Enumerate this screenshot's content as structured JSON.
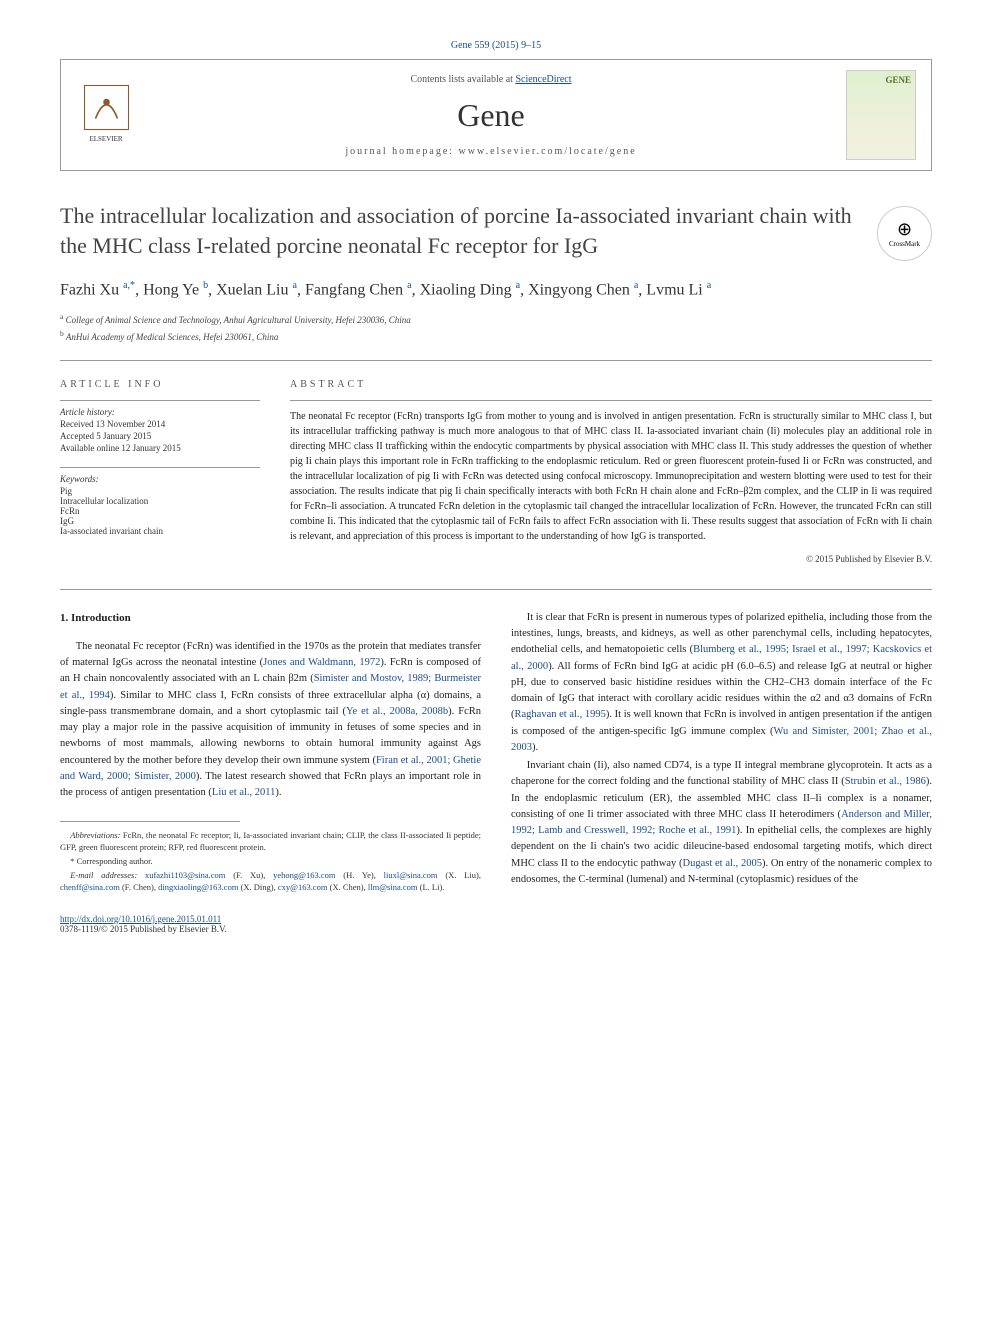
{
  "top_citation": "Gene 559 (2015) 9–15",
  "header": {
    "contents_prefix": "Contents lists available at ",
    "contents_link": "ScienceDirect",
    "journal_name": "Gene",
    "homepage_prefix": "journal homepage: ",
    "homepage_url": "www.elsevier.com/locate/gene",
    "gene_label": "GENE"
  },
  "title": "The intracellular localization and association of porcine Ia-associated invariant chain with the MHC class I-related porcine neonatal Fc receptor for IgG",
  "crossmark_label": "CrossMark",
  "authors_html": "Fazhi Xu <sup>a,*</sup>, Hong Ye <sup>b</sup>, Xuelan Liu <sup>a</sup>, Fangfang Chen <sup>a</sup>, Xiaoling Ding <sup>a</sup>, Xingyong Chen <sup>a</sup>, Lvmu Li <sup>a</sup>",
  "affiliations": [
    {
      "sup": "a",
      "text": " College of Animal Science and Technology, Anhui Agricultural University, Hefei 230036, China"
    },
    {
      "sup": "b",
      "text": " AnHui Academy of Medical Sciences, Hefei 230061, China"
    }
  ],
  "article_info": {
    "heading": "ARTICLE INFO",
    "history_label": "Article history:",
    "received": "Received 13 November 2014",
    "accepted": "Accepted 5 January 2015",
    "online": "Available online 12 January 2015",
    "keywords_label": "Keywords:",
    "keywords": [
      "Pig",
      "Intracellular localization",
      "FcRn",
      "IgG",
      "Ia-associated invariant chain"
    ]
  },
  "abstract": {
    "heading": "ABSTRACT",
    "text": "The neonatal Fc receptor (FcRn) transports IgG from mother to young and is involved in antigen presentation. FcRn is structurally similar to MHC class I, but its intracellular trafficking pathway is much more analogous to that of MHC class II. Ia-associated invariant chain (Ii) molecules play an additional role in directing MHC class II trafficking within the endocytic compartments by physical association with MHC class II. This study addresses the question of whether pig Ii chain plays this important role in FcRn trafficking to the endoplasmic reticulum. Red or green fluorescent protein-fused Ii or FcRn was constructed, and the intracellular localization of pig Ii with FcRn was detected using confocal microscopy. Immunoprecipitation and western blotting were used to test for their association. The results indicate that pig Ii chain specifically interacts with both FcRn H chain alone and FcRn–β2m complex, and the CLIP in Ii was required for FcRn–Ii association. A truncated FcRn deletion in the cytoplasmic tail changed the intracellular localization of FcRn. However, the truncated FcRn can still combine Ii. This indicated that the cytoplasmic tail of FcRn fails to affect FcRn association with Ii. These results suggest that association of FcRn with Ii chain is relevant, and appreciation of this process is important to the understanding of how IgG is transported.",
    "copyright": "© 2015 Published by Elsevier B.V."
  },
  "intro_heading": "1. Introduction",
  "col1_p1_pre": "The neonatal Fc receptor (FcRn) was identified in the 1970s as the protein that mediates transfer of maternal IgGs across the neonatal intestine (",
  "col1_p1_link1": "Jones and Waldmann, 1972",
  "col1_p1_mid1": "). FcRn is composed of an H chain noncovalently associated with an L chain β2m (",
  "col1_p1_link2": "Simister and Mostov, 1989; Burmeister et al., 1994",
  "col1_p1_mid2": "). Similar to MHC class I, FcRn consists of three extracellular alpha (α) domains, a single-pass transmembrane domain, and a short cytoplasmic tail (",
  "col1_p1_link3": "Ye et al., 2008a, 2008b",
  "col1_p1_mid3": "). FcRn may play a major role in the passive acquisition of immunity in fetuses of some species and in newborns of most mammals, allowing newborns to obtain humoral immunity against Ags encountered by the mother before they develop their own immune system (",
  "col1_p1_link4": "Firan et al., 2001; Ghetie and Ward, 2000; Simister, 2000",
  "col1_p1_mid4": "). The latest research showed that FcRn plays an important role in the process of antigen presentation (",
  "col1_p1_link5": "Liu et al., 2011",
  "col1_p1_end": ").",
  "col2_p1_pre": "It is clear that FcRn is present in numerous types of polarized epithelia, including those from the intestines, lungs, breasts, and kidneys, as well as other parenchymal cells, including hepatocytes, endothelial cells, and hematopoietic cells (",
  "col2_p1_link1": "Blumberg et al., 1995; Israel et al., 1997; Kacskovics et al., 2000",
  "col2_p1_mid1": "). All forms of FcRn bind IgG at acidic pH (6.0–6.5) and release IgG at neutral or higher pH, due to conserved basic histidine residues within the CH2–CH3 domain interface of the Fc domain of IgG that interact with corollary acidic residues within the α2 and α3 domains of FcRn (",
  "col2_p1_link2": "Raghavan et al., 1995",
  "col2_p1_mid2": "). It is well known that FcRn is involved in antigen presentation if the antigen is composed of the antigen-specific IgG immune complex (",
  "col2_p1_link3": "Wu and Simister, 2001; Zhao et al., 2003",
  "col2_p1_end": ").",
  "col2_p2_pre": "Invariant chain (Ii), also named CD74, is a type II integral membrane glycoprotein. It acts as a chaperone for the correct folding and the functional stability of MHC class II (",
  "col2_p2_link1": "Strubin et al., 1986",
  "col2_p2_mid1": "). In the endoplasmic reticulum (ER), the assembled MHC class II–Ii complex is a nonamer, consisting of one Ii trimer associated with three MHC class II heterodimers (",
  "col2_p2_link2": "Anderson and Miller, 1992; Lamb and Cresswell, 1992; Roche et al., 1991",
  "col2_p2_mid2": "). In epithelial cells, the complexes are highly dependent on the Ii chain's two acidic dileucine-based endosomal targeting motifs, which direct MHC class II to the endocytic pathway (",
  "col2_p2_link3": "Dugast et al., 2005",
  "col2_p2_end": "). On entry of the nonameric complex to endosomes, the C-terminal (lumenal) and N-terminal (cytoplasmic) residues of the",
  "footnotes": {
    "abbrev_label": "Abbreviations:",
    "abbrev_text": " FcRn, the neonatal Fc receptor; Ii, Ia-associated invariant chain; CLIP, the class II-associated Ii peptide; GFP, green fluorescent protein; RFP, red fluorescent protein.",
    "corr_label": "* Corresponding author.",
    "email_label": "E-mail addresses: ",
    "emails": [
      {
        "addr": "xufazhi1103@sina.com",
        "who": " (F. Xu), "
      },
      {
        "addr": "yehong@163.com",
        "who": " (H. Ye), "
      },
      {
        "addr": "liuxl@sina.com",
        "who": " (X. Liu), "
      },
      {
        "addr": "chenff@sina.com",
        "who": " (F. Chen), "
      },
      {
        "addr": "dingxiaoling@163.com",
        "who": " (X. Ding), "
      },
      {
        "addr": "cxy@163.com",
        "who": " (X. Chen), "
      },
      {
        "addr": "llm@sina.com",
        "who": " (L. Li)."
      }
    ]
  },
  "doi": {
    "url": "http://dx.doi.org/10.1016/j.gene.2015.01.011",
    "issn_line": "0378-1119/© 2015 Published by Elsevier B.V."
  },
  "colors": {
    "link": "#1a4d8f",
    "text": "#222222",
    "border": "#999999"
  }
}
